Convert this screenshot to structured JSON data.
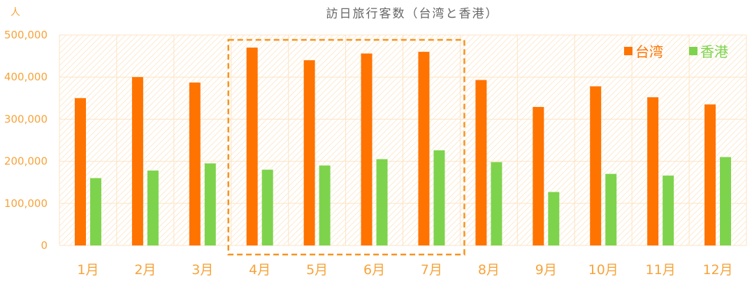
{
  "chart_data": {
    "type": "bar",
    "title": "訪日旅行客数（台湾と香港）",
    "ylabel": "人",
    "xlabel": "",
    "categories": [
      "1月",
      "2月",
      "3月",
      "4月",
      "5月",
      "6月",
      "7月",
      "8月",
      "9月",
      "10月",
      "11月",
      "12月"
    ],
    "series": [
      {
        "name": "台湾",
        "color": "#ff7300",
        "values": [
          350000,
          400000,
          387000,
          470000,
          440000,
          456000,
          460000,
          393000,
          329000,
          378000,
          352000,
          335000
        ]
      },
      {
        "name": "香港",
        "color": "#7ed34c",
        "values": [
          160000,
          178000,
          195000,
          180000,
          190000,
          205000,
          226000,
          198000,
          127000,
          170000,
          166000,
          210000
        ]
      }
    ],
    "ylim": [
      0,
      500000
    ],
    "yticks": [
      0,
      100000,
      200000,
      300000,
      400000,
      500000
    ],
    "ytick_labels": [
      "0",
      "100,000",
      "200,000",
      "300,000",
      "400,000",
      "500,000"
    ],
    "grid": true,
    "legend_position": "top-right",
    "highlight": {
      "from_category": "4月",
      "to_category": "7月",
      "style": "dashed-box",
      "color": "#f7931e"
    },
    "colors": {
      "background_hatch": "#fde9cf",
      "grid": "#fde3c4",
      "axis_text": "#f7a33a",
      "title_text": "#666666"
    }
  }
}
